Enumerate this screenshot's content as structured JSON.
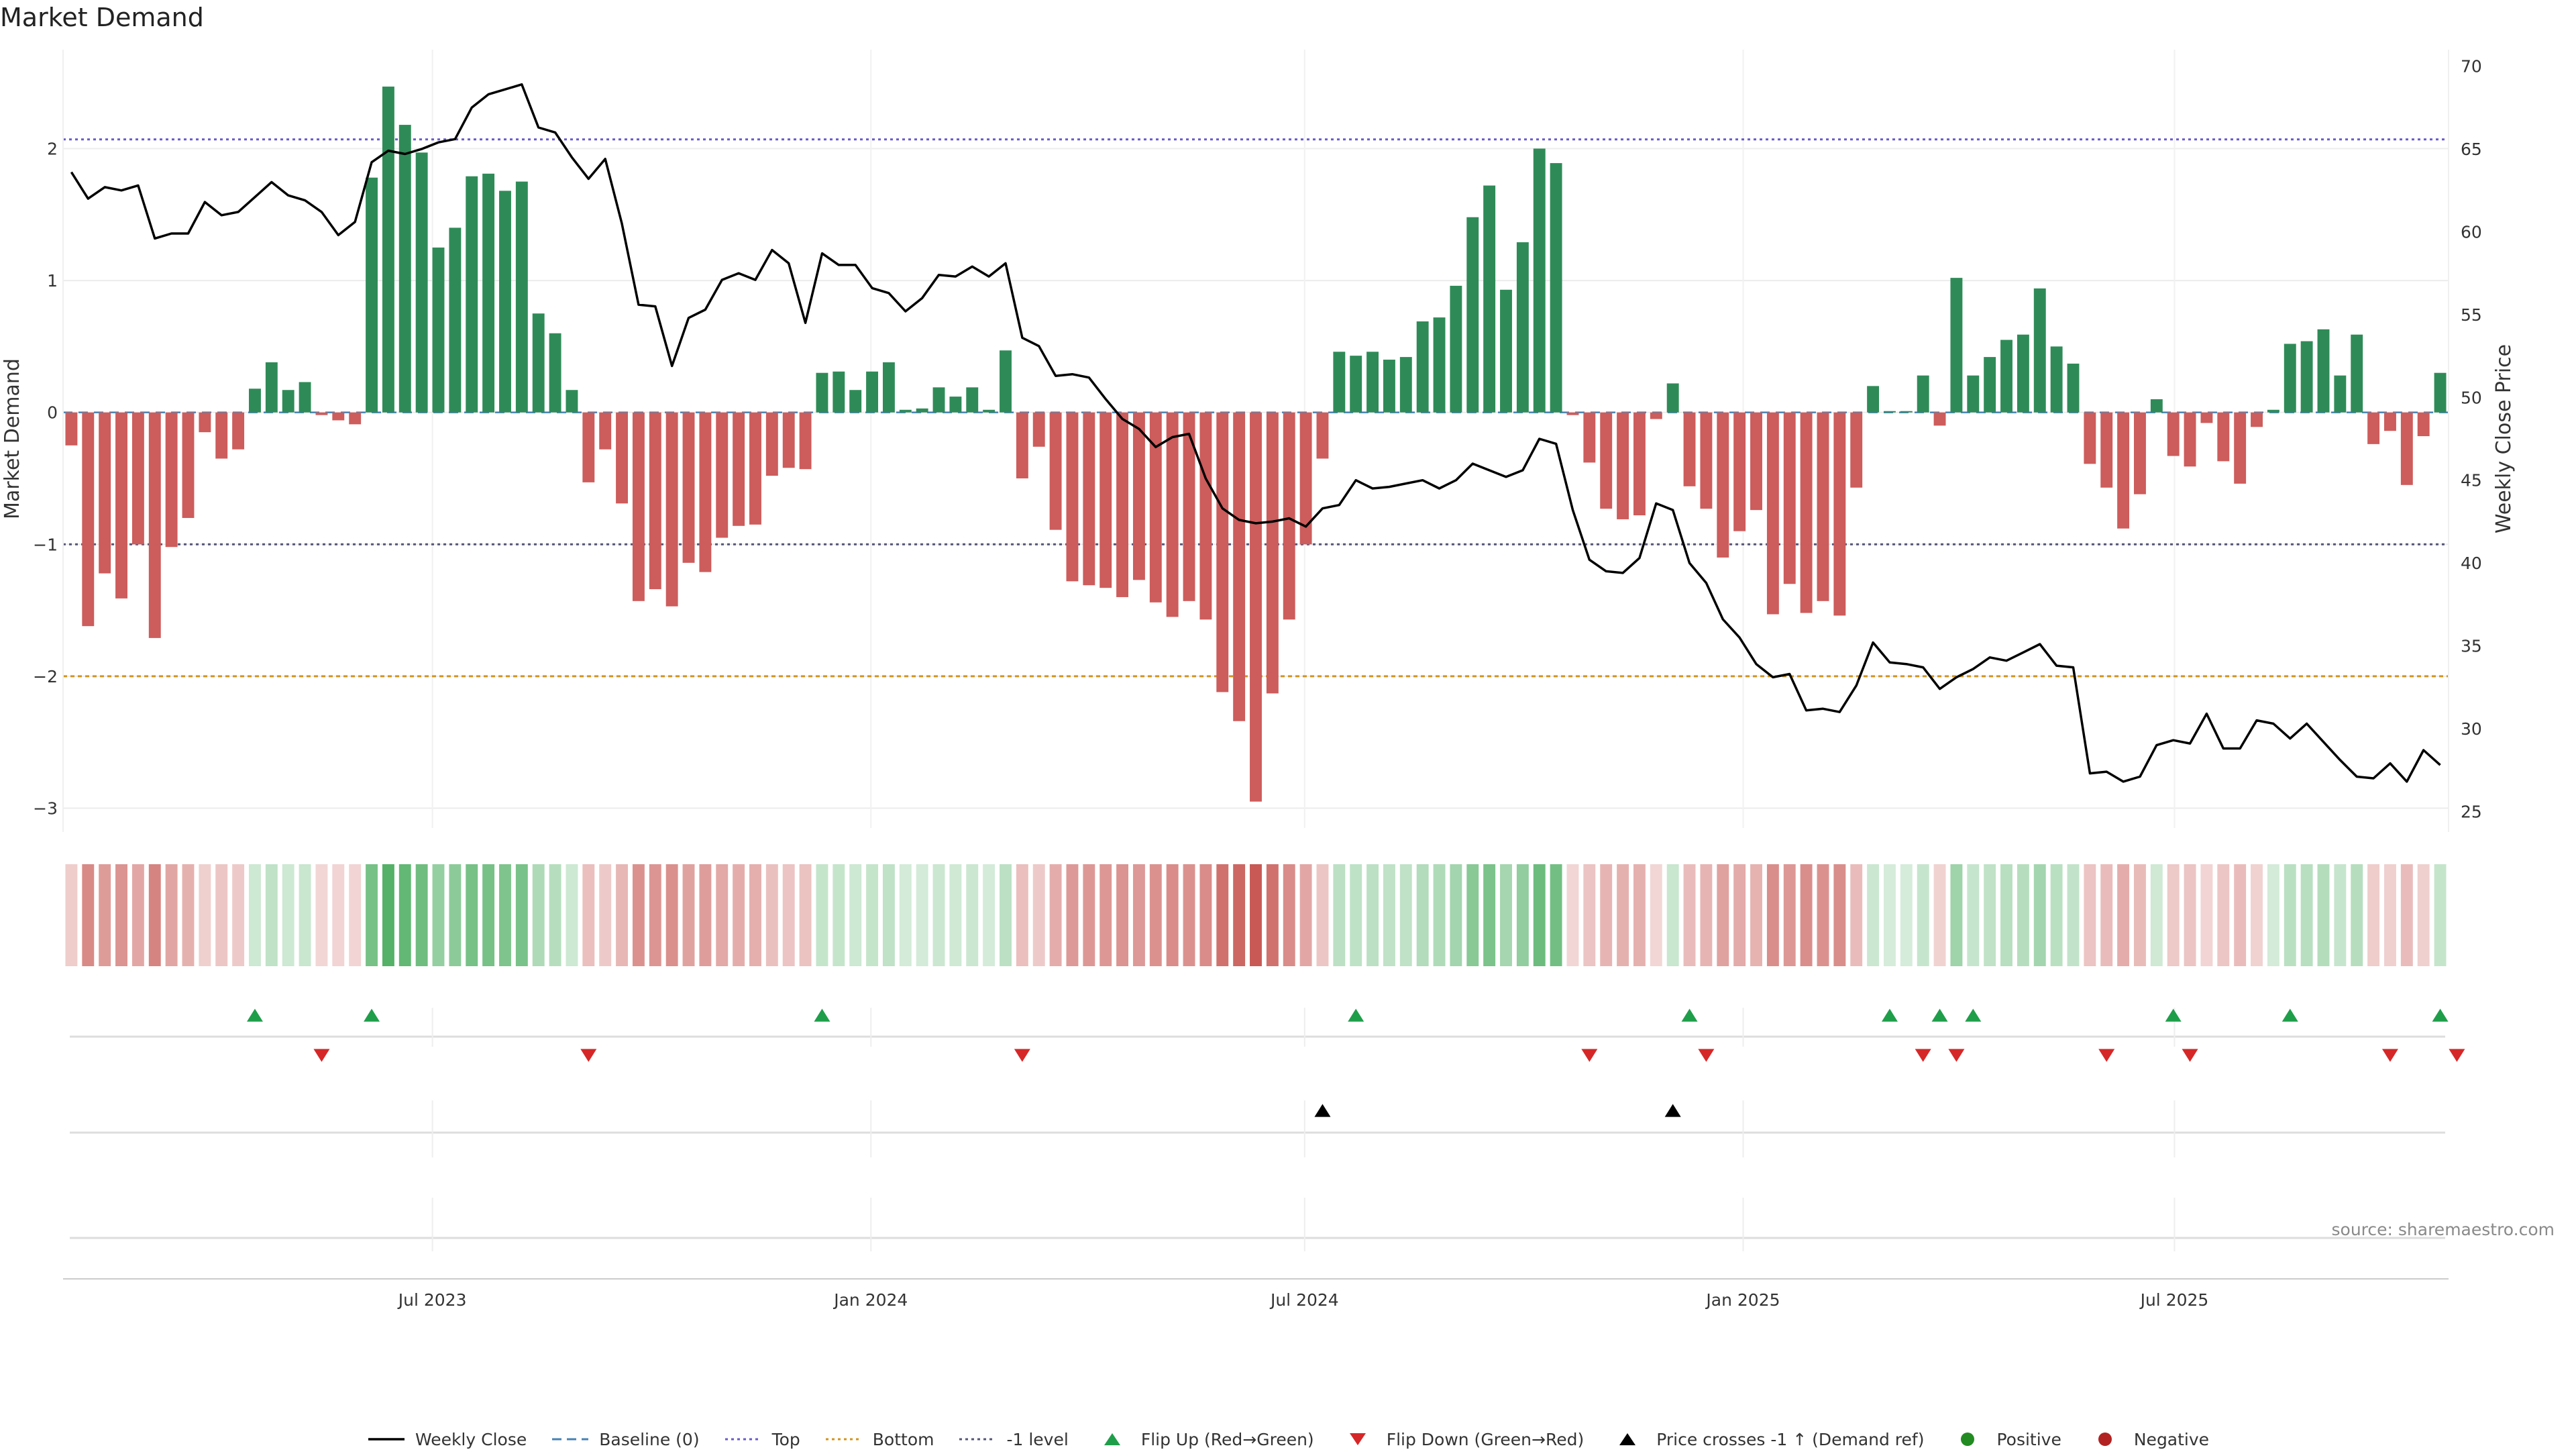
{
  "title": "Market Demand",
  "source_text": "source: sharemaestro.com",
  "colors": {
    "positive": "#2e8b57",
    "negative": "#cd5c5c",
    "top": "#6a5acd",
    "bottom": "#d2941e",
    "minus_one": "#555577",
    "baseline": "#4682b4",
    "price_line": "#000000",
    "flip_up": "#1f9e4a",
    "flip_down": "#d62728",
    "cross": "#000000"
  },
  "legend": [
    {
      "label": "Weekly Close",
      "kind": "line",
      "color": "#000000"
    },
    {
      "label": "Baseline (0)",
      "kind": "dashed",
      "color": "#4682b4"
    },
    {
      "label": "Top",
      "kind": "dotted",
      "color": "#6a5acd"
    },
    {
      "label": "Bottom",
      "kind": "dotted",
      "color": "#d2941e"
    },
    {
      "label": "-1 level",
      "kind": "dotted",
      "color": "#555577"
    },
    {
      "label": "Flip Up (Red→Green)",
      "kind": "tri-up",
      "color": "#1f9e4a"
    },
    {
      "label": "Flip Down (Green→Red)",
      "kind": "tri-down",
      "color": "#d62728"
    },
    {
      "label": "Price crosses -1 ↑ (Demand ref)",
      "kind": "tri-up",
      "color": "#000000"
    },
    {
      "label": "Positive",
      "kind": "dot",
      "color": "#228b22"
    },
    {
      "label": "Negative",
      "kind": "dot",
      "color": "#b22222"
    }
  ],
  "chart_data": {
    "type": "bar",
    "x_unit": "weekly",
    "x_start": "2023-01-27",
    "x_ticks": [
      {
        "label": "Jul 2023",
        "date": "2023-07-01"
      },
      {
        "label": "Jan 2024",
        "date": "2024-01-01"
      },
      {
        "label": "Jul 2024",
        "date": "2024-07-01"
      },
      {
        "label": "Jan 2025",
        "date": "2025-01-01"
      },
      {
        "label": "Jul 2025",
        "date": "2025-07-01"
      }
    ],
    "y_left": {
      "label": "Market Demand",
      "range": [
        -3.15,
        2.75
      ],
      "ticks": [
        -3,
        -2,
        -1,
        0,
        1,
        2
      ]
    },
    "y_right": {
      "label": "Weekly Close Price",
      "range": [
        24,
        71
      ],
      "ticks": [
        25,
        30,
        35,
        40,
        45,
        50,
        55,
        60,
        65,
        70
      ]
    },
    "levels": {
      "top": 2.07,
      "bottom": -2.0,
      "minus_one": -1.0,
      "baseline": 0
    },
    "series": [
      {
        "name": "Market Demand",
        "values": [
          -0.25,
          -1.62,
          -1.22,
          -1.41,
          -1.0,
          -1.71,
          -1.02,
          -0.8,
          -0.15,
          -0.35,
          -0.28,
          0.18,
          0.38,
          0.17,
          0.23,
          -0.02,
          -0.06,
          -0.09,
          1.78,
          2.47,
          2.18,
          1.97,
          1.25,
          1.4,
          1.79,
          1.81,
          1.68,
          1.75,
          0.75,
          0.6,
          0.17,
          -0.53,
          -0.28,
          -0.69,
          -1.43,
          -1.34,
          -1.47,
          -1.14,
          -1.21,
          -0.95,
          -0.86,
          -0.85,
          -0.48,
          -0.42,
          -0.43,
          0.3,
          0.31,
          0.17,
          0.31,
          0.38,
          0.02,
          0.03,
          0.19,
          0.12,
          0.19,
          0.02,
          0.47,
          -0.5,
          -0.26,
          -0.89,
          -1.28,
          -1.31,
          -1.33,
          -1.4,
          -1.27,
          -1.44,
          -1.55,
          -1.43,
          -1.57,
          -2.12,
          -2.34,
          -2.95,
          -2.13,
          -1.57,
          -1.0,
          -0.35,
          0.46,
          0.43,
          0.46,
          0.4,
          0.42,
          0.69,
          0.72,
          0.96,
          1.48,
          1.72,
          0.93,
          1.29,
          2.0,
          1.89,
          -0.02,
          -0.38,
          -0.73,
          -0.81,
          -0.78,
          -0.05,
          0.22,
          -0.56,
          -0.73,
          -1.1,
          -0.9,
          -0.74,
          -1.53,
          -1.3,
          -1.52,
          -1.43,
          -1.54,
          -0.57,
          0.2,
          0.01,
          0.01,
          0.28,
          -0.1,
          1.02,
          0.28,
          0.42,
          0.55,
          0.59,
          0.94,
          0.5,
          0.37,
          -0.39,
          -0.57,
          -0.88,
          -0.62,
          0.1,
          -0.33,
          -0.41,
          -0.08,
          -0.37,
          -0.54,
          -0.11,
          0.02,
          0.52,
          0.54,
          0.63,
          0.28,
          0.59,
          -0.24,
          -0.14,
          -0.55,
          -0.18,
          0.3
        ]
      },
      {
        "name": "Weekly Close",
        "type": "line",
        "values": [
          63.6,
          62.0,
          62.7,
          62.5,
          62.8,
          59.6,
          59.9,
          59.9,
          61.8,
          61.0,
          61.2,
          62.1,
          63.0,
          62.2,
          61.9,
          61.2,
          59.8,
          60.6,
          64.2,
          64.9,
          64.7,
          65.0,
          65.4,
          65.6,
          67.5,
          68.3,
          68.6,
          68.9,
          66.3,
          66.0,
          64.5,
          63.2,
          64.4,
          60.5,
          55.6,
          55.5,
          51.9,
          54.8,
          55.3,
          57.1,
          57.5,
          57.1,
          58.9,
          58.1,
          54.5,
          58.7,
          58.0,
          58.0,
          56.6,
          56.3,
          55.2,
          56.0,
          57.4,
          57.3,
          57.9,
          57.3,
          58.1,
          53.6,
          53.1,
          51.3,
          51.4,
          51.2,
          49.9,
          48.7,
          48.1,
          47.0,
          47.6,
          47.8,
          45.1,
          43.3,
          42.6,
          42.4,
          42.5,
          42.7,
          42.2,
          43.3,
          43.5,
          45.0,
          44.5,
          44.6,
          44.8,
          45.0,
          44.5,
          45.0,
          46.0,
          45.6,
          45.2,
          45.6,
          47.5,
          47.2,
          43.2,
          40.2,
          39.5,
          39.4,
          40.3,
          43.6,
          43.2,
          40.0,
          38.8,
          36.6,
          35.5,
          33.9,
          33.1,
          33.3,
          31.1,
          31.2,
          31.0,
          32.6,
          35.2,
          34.0,
          33.9,
          33.7,
          32.4,
          33.1,
          33.6,
          34.3,
          34.1,
          34.6,
          35.1,
          33.8,
          33.7,
          27.3,
          27.4,
          26.8,
          27.1,
          29.0,
          29.3,
          29.1,
          30.9,
          28.8,
          28.8,
          30.5,
          30.3,
          29.4,
          30.3,
          29.2,
          28.1,
          27.1,
          27.0,
          27.9,
          26.8,
          28.7,
          27.8
        ]
      }
    ],
    "flip_up_weeks": [
      11,
      18,
      45,
      77,
      97,
      109,
      112,
      114,
      126,
      133,
      142
    ],
    "flip_down_weeks": [
      15,
      31,
      57,
      91,
      98,
      111,
      113,
      122,
      127,
      139,
      143
    ],
    "price_cross_weeks": [
      75,
      96
    ],
    "heat_strip": "demand-intensity"
  }
}
